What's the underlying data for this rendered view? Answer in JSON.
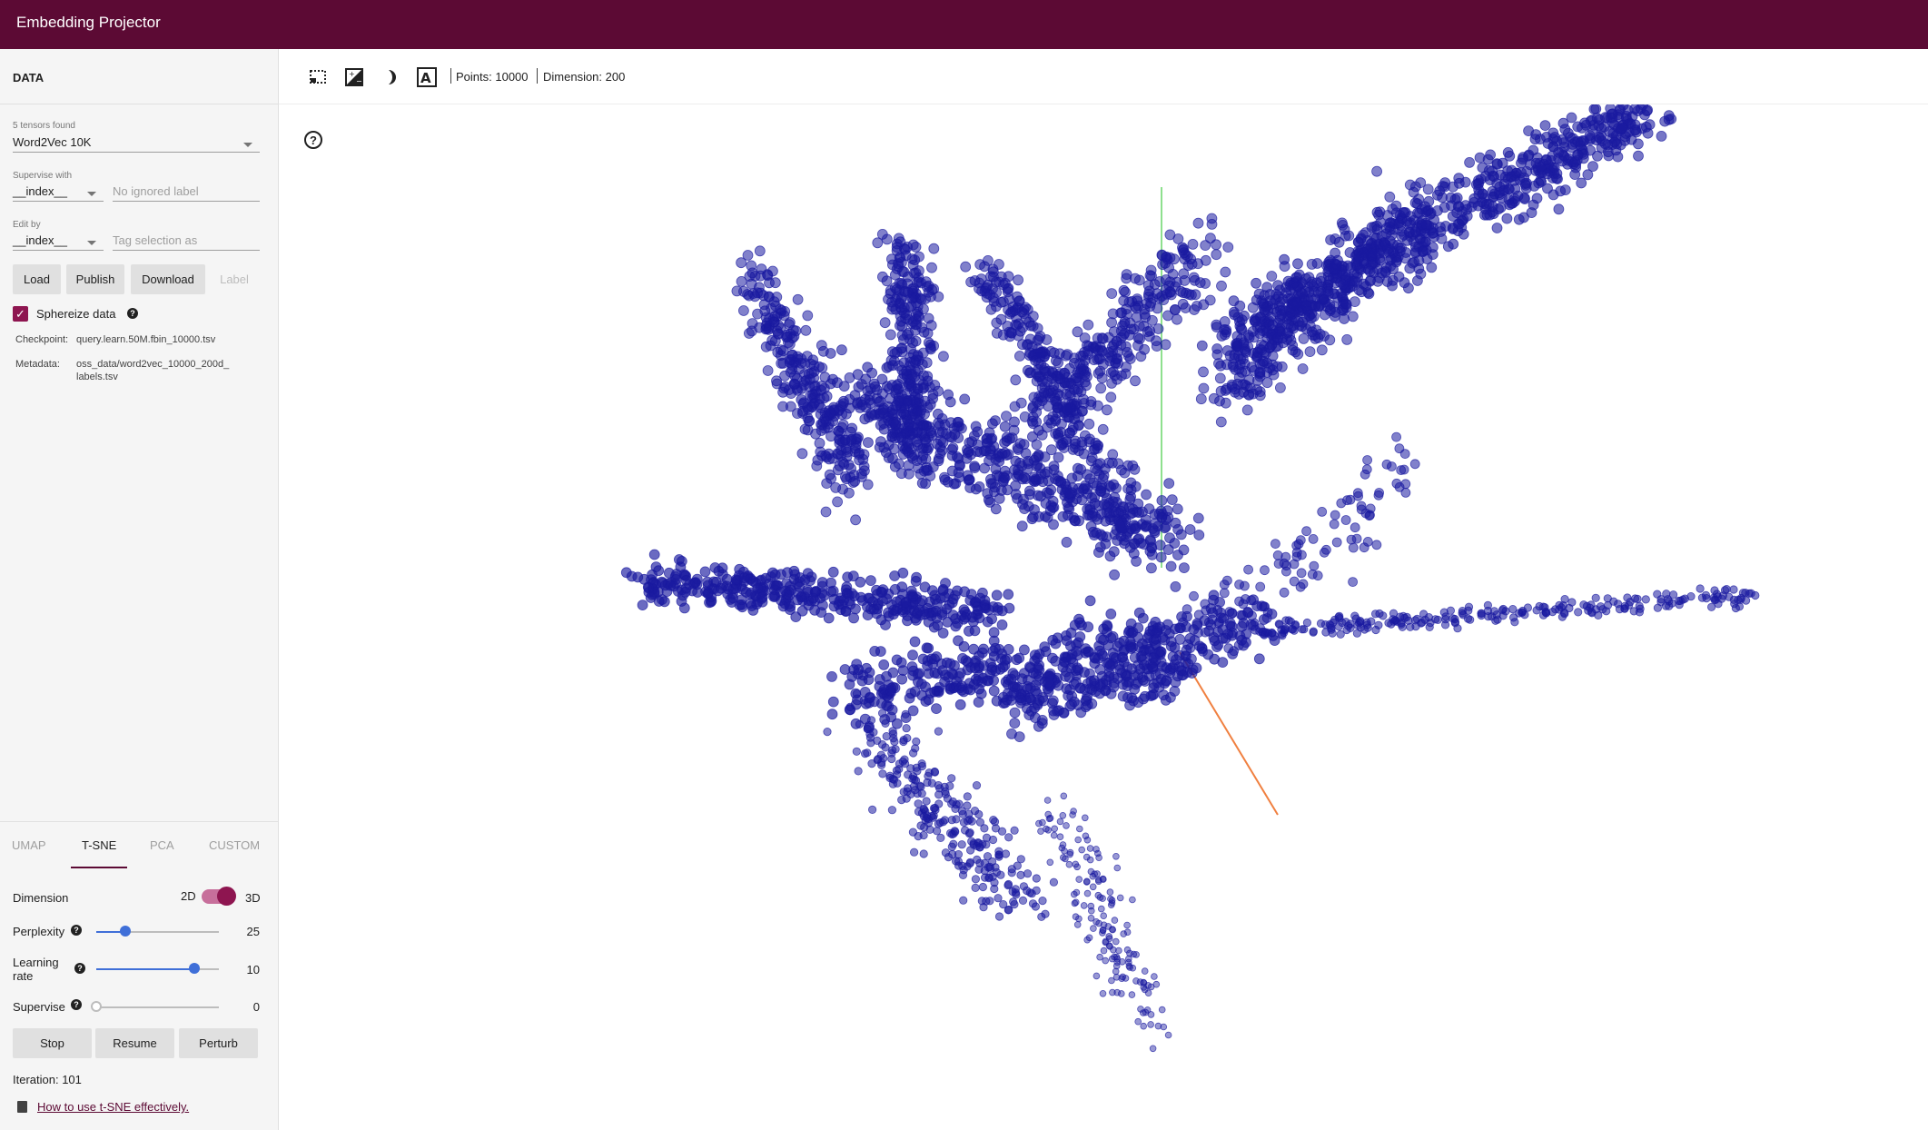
{
  "app": {
    "title": "Embedding Projector"
  },
  "data_panel": {
    "section_title": "DATA",
    "tensors_label": "5 tensors found",
    "tensor_selected": "Word2Vec 10K",
    "supervise_label": "Supervise with",
    "supervise_value": "__index__",
    "ignored_label_placeholder": "No ignored label",
    "edit_label": "Edit by",
    "edit_value": "__index__",
    "tag_placeholder": "Tag selection as",
    "buttons": {
      "load": "Load",
      "publish": "Publish",
      "download": "Download",
      "label": "Label"
    },
    "sphereize_label": "Sphereize data",
    "sphereize_checked": true,
    "checkpoint_key": "Checkpoint:",
    "checkpoint_value": "query.learn.50M.fbin_10000.tsv",
    "metadata_key": "Metadata:",
    "metadata_value_line1": "oss_data/word2vec_10000_200d_",
    "metadata_value_line2": "labels.tsv"
  },
  "projection_tabs": [
    {
      "label": "UMAP",
      "active": false
    },
    {
      "label": "T-SNE",
      "active": true
    },
    {
      "label": "PCA",
      "active": false
    },
    {
      "label": "CUSTOM",
      "active": false
    }
  ],
  "tsne": {
    "dimension_label": "Dimension",
    "dim_2d": "2D",
    "dim_3d": "3D",
    "dimension_selected": "3D",
    "perplexity_label": "Perplexity",
    "perplexity_value": "25",
    "perplexity_fraction": 0.24,
    "learning_rate_label_line1": "Learning",
    "learning_rate_label_line2": "rate",
    "learning_rate_value": "10",
    "learning_rate_fraction": 0.8,
    "supervise_label": "Supervise",
    "supervise_value": "0",
    "supervise_fraction": 0,
    "buttons": {
      "stop": "Stop",
      "resume": "Resume",
      "perturb": "Perturb"
    },
    "iteration_text": "Iteration: 101",
    "help_link": "How to use t-SNE effectively."
  },
  "toolbar": {
    "icons": [
      "bounding-box-select-icon",
      "night-mode-icon",
      "contrast-icon",
      "label-icon"
    ],
    "points_text": "Points: 10000",
    "dimension_text": "Dimension: 200"
  },
  "colors": {
    "brand": "#5c0a34",
    "accent": "#8e1550",
    "point": "#1a1aa0",
    "slider": "#3f6fd8",
    "axis_y": "#8ee08e",
    "axis_z": "#f08040"
  }
}
